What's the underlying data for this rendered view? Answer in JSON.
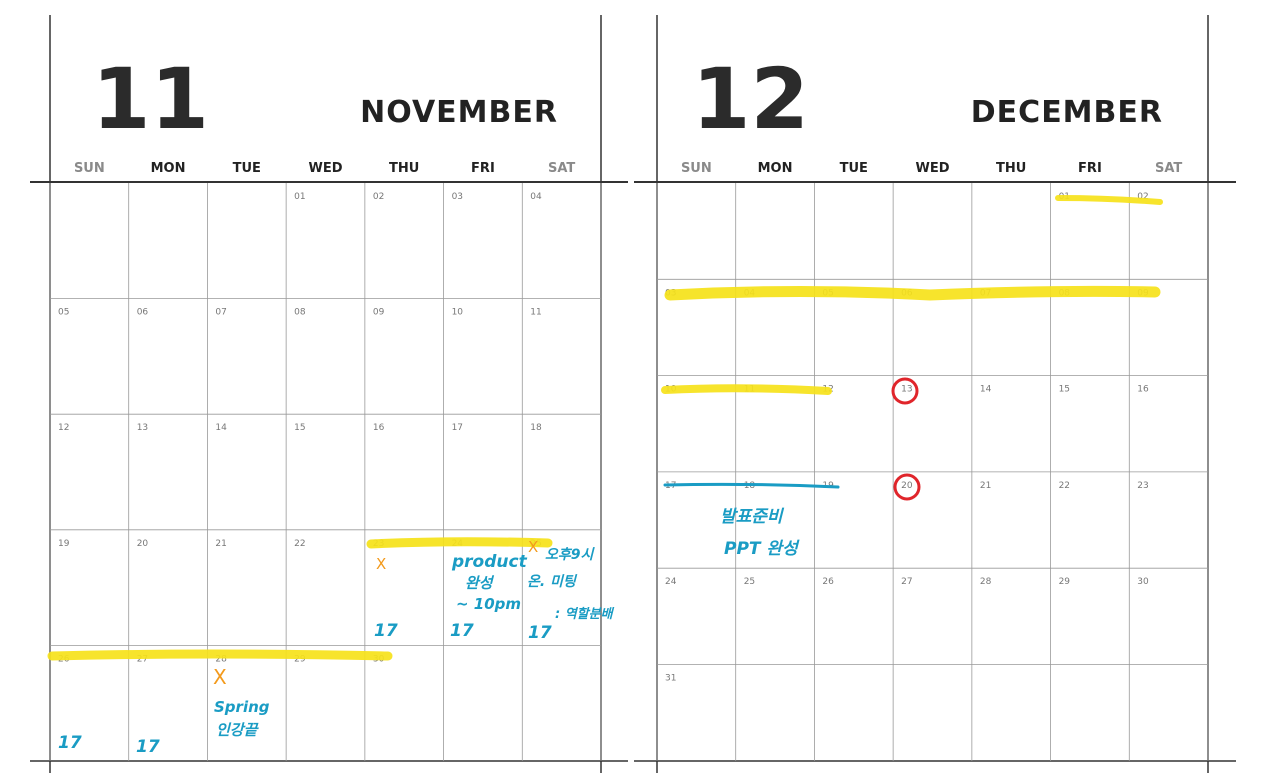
{
  "november": {
    "number": "11",
    "name": "NOVEMBER",
    "weekdays": [
      "SUN",
      "MON",
      "TUE",
      "WED",
      "THU",
      "FRI",
      "SAT"
    ],
    "weeks": [
      [
        "",
        "",
        "",
        "01",
        "02",
        "03",
        "04"
      ],
      [
        "05",
        "06",
        "07",
        "08",
        "09",
        "10",
        "11"
      ],
      [
        "12",
        "13",
        "14",
        "15",
        "16",
        "17",
        "18"
      ],
      [
        "19",
        "20",
        "21",
        "22",
        "23",
        "24",
        "25"
      ],
      [
        "26",
        "27",
        "28",
        "29",
        "30",
        "",
        ""
      ]
    ]
  },
  "december": {
    "number": "12",
    "name": "DECEMBER",
    "weekdays": [
      "SUN",
      "MON",
      "TUE",
      "WED",
      "THU",
      "FRI",
      "SAT"
    ],
    "weeks": [
      [
        "",
        "",
        "",
        "",
        "",
        "01",
        "02"
      ],
      [
        "03",
        "04",
        "05",
        "06",
        "07",
        "08",
        "09"
      ],
      [
        "10",
        "11",
        "12",
        "13",
        "14",
        "15",
        "16"
      ],
      [
        "17",
        "18",
        "19",
        "20",
        "21",
        "22",
        "23"
      ],
      [
        "24",
        "25",
        "26",
        "27",
        "28",
        "29",
        "30"
      ],
      [
        "31",
        "",
        "",
        "",
        "",
        "",
        ""
      ]
    ]
  },
  "annotations": {
    "product": "product",
    "product_2": "완성",
    "product_3": "~ 10pm",
    "fri_mark": "17",
    "thu_mark": "17",
    "sat_mark": "17",
    "sat_note_1": "오후9시",
    "sat_note_2": "온. 미팅",
    "sat_note_3": ": 역할분배",
    "spring_1": "Spring",
    "spring_2": "인강끝",
    "sun_mark": "17",
    "mon_mark": "17",
    "dec_note_1": "발표준비",
    "dec_note_2": "PPT 완성",
    "x_mark": "X"
  },
  "colors": {
    "highlight": "#f6e21a",
    "pen_blue": "#1a9cc4",
    "pen_orange": "#f39a1c",
    "circle_red": "#e0252b"
  }
}
